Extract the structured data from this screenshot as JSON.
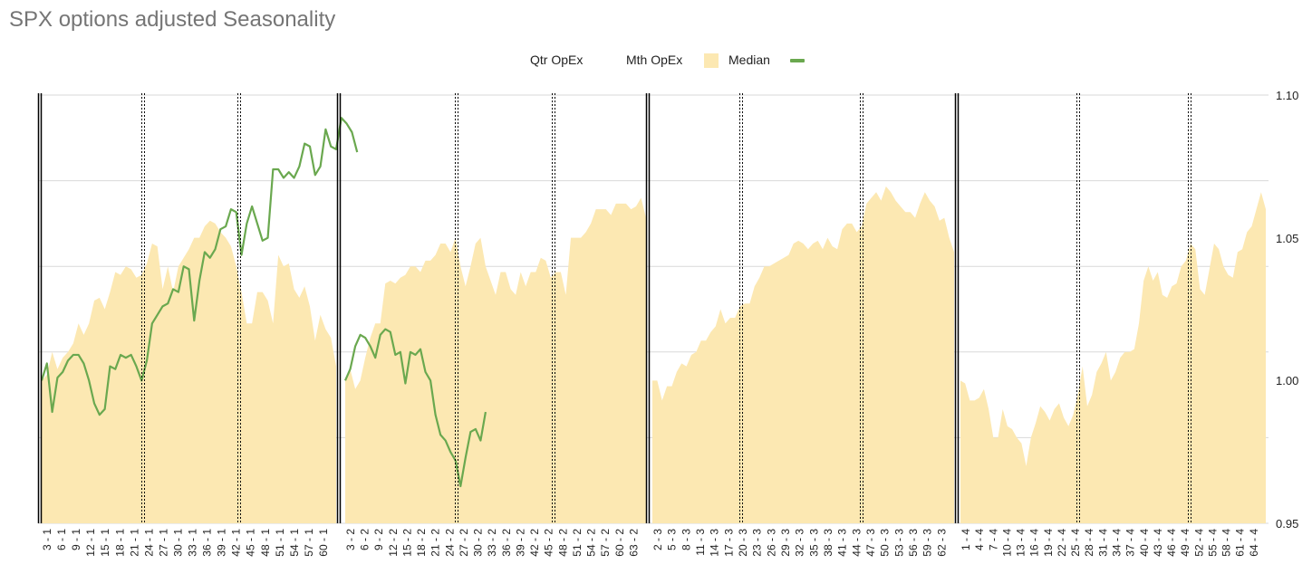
{
  "title": "SPX options adjusted Seasonality",
  "legend": {
    "qtr_opex": "Qtr OpEx",
    "mth_opex": "Mth OpEx",
    "median": "Median",
    "green_series": ""
  },
  "colors": {
    "median_fill": "#fce8b2",
    "green_line": "#6aa84f",
    "qtr_opex_line": "#000000",
    "mth_opex_line": "#000000",
    "gridline": "#d9d9d9"
  },
  "chart_data": {
    "type": "area",
    "title": "SPX options adjusted Seasonality",
    "ylim": [
      0.95,
      1.1
    ],
    "y_ticks": [
      "0.95",
      "1.00",
      "1.05",
      "1.10"
    ],
    "y_axis_side": "right",
    "grid": true,
    "legend_position": "top",
    "quarters": [
      {
        "quarter": 1,
        "x_labels": [
          "3 - 1",
          "6 - 1",
          "9 - 1",
          "12 - 1",
          "15 - 1",
          "18 - 1",
          "21 - 1",
          "24 - 1",
          "27 - 1",
          "30 - 1",
          "33 - 1",
          "36 - 1",
          "39 - 1",
          "42 - 1",
          "45 - 1",
          "48 - 1",
          "51 - 1",
          "54 - 1",
          "57 - 1",
          "60 - 1"
        ],
        "median": [
          1.0,
          1.002,
          1.01,
          1.004,
          1.008,
          1.01,
          1.013,
          1.02,
          1.016,
          1.02,
          1.028,
          1.029,
          1.025,
          1.031,
          1.038,
          1.037,
          1.04,
          1.039,
          1.036,
          1.037,
          1.041,
          1.048,
          1.047,
          1.032,
          1.04,
          1.031,
          1.04,
          1.043,
          1.046,
          1.05,
          1.05,
          1.054,
          1.056,
          1.055,
          1.052,
          1.05,
          1.047,
          1.04,
          1.031,
          1.02,
          1.02,
          1.031,
          1.031,
          1.028,
          1.02,
          1.044,
          1.04,
          1.041,
          1.032,
          1.029,
          1.033,
          1.026,
          1.014,
          1.023,
          1.018,
          1.015,
          1.005
        ],
        "green": [
          1.0,
          1.006,
          0.989,
          1.001,
          1.003,
          1.007,
          1.009,
          1.009,
          1.006,
          1.0,
          0.992,
          0.988,
          0.99,
          1.005,
          1.004,
          1.009,
          1.008,
          1.009,
          1.005,
          1.0,
          1.007,
          1.02,
          1.023,
          1.026,
          1.027,
          1.032,
          1.031,
          1.04,
          1.039,
          1.021,
          1.035,
          1.045,
          1.043,
          1.046,
          1.053,
          1.054,
          1.06,
          1.059,
          1.044,
          1.055,
          1.061,
          1.055,
          1.049,
          1.05,
          1.074,
          1.074,
          1.071,
          1.073,
          1.071,
          1.075,
          1.083,
          1.082,
          1.072,
          1.075,
          1.088,
          1.082,
          1.081,
          1.092,
          1.09,
          1.087,
          1.08
        ]
      },
      {
        "quarter": 2,
        "x_labels": [
          "3 - 2",
          "6 - 2",
          "9 - 2",
          "12 - 2",
          "15 - 2",
          "18 - 2",
          "21 - 2",
          "24 - 2",
          "27 - 2",
          "30 - 2",
          "33 - 2",
          "36 - 2",
          "39 - 2",
          "42 - 2",
          "45 - 2",
          "48 - 2",
          "51 - 2",
          "54 - 2",
          "57 - 2",
          "60 - 2",
          "63 - 2"
        ],
        "median": [
          1.0,
          1.004,
          0.997,
          1.0,
          1.008,
          1.015,
          1.02,
          1.02,
          1.034,
          1.035,
          1.034,
          1.036,
          1.037,
          1.04,
          1.04,
          1.038,
          1.042,
          1.042,
          1.044,
          1.048,
          1.048,
          1.045,
          1.05,
          1.04,
          1.033,
          1.04,
          1.048,
          1.05,
          1.04,
          1.035,
          1.03,
          1.038,
          1.038,
          1.032,
          1.03,
          1.038,
          1.033,
          1.038,
          1.038,
          1.043,
          1.042,
          1.036,
          1.038,
          1.038,
          1.03,
          1.05,
          1.05,
          1.05,
          1.052,
          1.055,
          1.06,
          1.06,
          1.06,
          1.058,
          1.062,
          1.062,
          1.062,
          1.06,
          1.061,
          1.064,
          1.057
        ],
        "green": [
          1.0,
          1.004,
          1.012,
          1.016,
          1.015,
          1.012,
          1.008,
          1.016,
          1.018,
          1.017,
          1.009,
          1.01,
          0.999,
          1.01,
          1.009,
          1.011,
          1.003,
          1.0,
          0.988,
          0.981,
          0.979,
          0.975,
          0.972,
          0.963,
          0.973,
          0.982,
          0.983,
          0.979,
          0.989
        ]
      },
      {
        "quarter": 3,
        "x_labels": [
          "2 - 3",
          "5 - 3",
          "8 - 3",
          "11 - 3",
          "14 - 3",
          "17 - 3",
          "20 - 3",
          "23 - 3",
          "26 - 3",
          "29 - 3",
          "32 - 3",
          "35 - 3",
          "38 - 3",
          "41 - 3",
          "44 - 3",
          "47 - 3",
          "50 - 3",
          "53 - 3",
          "56 - 3",
          "59 - 3",
          "62 - 3"
        ],
        "median": [
          1.0,
          1.0,
          0.993,
          0.998,
          0.998,
          1.003,
          1.006,
          1.005,
          1.009,
          1.01,
          1.014,
          1.014,
          1.017,
          1.019,
          1.025,
          1.02,
          1.022,
          1.022,
          1.026,
          1.027,
          1.027,
          1.033,
          1.036,
          1.04,
          1.04,
          1.041,
          1.042,
          1.043,
          1.044,
          1.048,
          1.049,
          1.048,
          1.046,
          1.048,
          1.049,
          1.046,
          1.05,
          1.047,
          1.046,
          1.053,
          1.055,
          1.055,
          1.052,
          1.054,
          1.062,
          1.064,
          1.066,
          1.063,
          1.068,
          1.066,
          1.063,
          1.061,
          1.059,
          1.059,
          1.057,
          1.062,
          1.066,
          1.063,
          1.061,
          1.056,
          1.057,
          1.05,
          1.045
        ]
      },
      {
        "quarter": 4,
        "x_labels": [
          "1 - 4",
          "4 - 4",
          "7 - 4",
          "10 - 4",
          "13 - 4",
          "16 - 4",
          "19 - 4",
          "22 - 4",
          "25 - 4",
          "28 - 4",
          "31 - 4",
          "34 - 4",
          "37 - 4",
          "40 - 4",
          "43 - 4",
          "46 - 4",
          "49 - 4",
          "52 - 4",
          "55 - 4",
          "58 - 4",
          "61 - 4",
          "64 - 4"
        ],
        "median": [
          1.0,
          0.999,
          0.993,
          0.993,
          0.994,
          0.997,
          0.99,
          0.98,
          0.98,
          0.99,
          0.984,
          0.983,
          0.98,
          0.978,
          0.97,
          0.98,
          0.985,
          0.991,
          0.989,
          0.986,
          0.99,
          0.992,
          0.987,
          0.984,
          0.988,
          0.995,
          1.005,
          0.991,
          0.995,
          1.003,
          1.006,
          1.01,
          1.0,
          1.003,
          1.008,
          1.01,
          1.01,
          1.011,
          1.02,
          1.035,
          1.04,
          1.035,
          1.038,
          1.03,
          1.029,
          1.033,
          1.034,
          1.04,
          1.042,
          1.048,
          1.046,
          1.032,
          1.03,
          1.039,
          1.048,
          1.046,
          1.04,
          1.037,
          1.036,
          1.045,
          1.046,
          1.052,
          1.054,
          1.06,
          1.066,
          1.06
        ]
      }
    ],
    "opex_markers": [
      {
        "quarter": 1,
        "type": "qtr",
        "x_label": "3 - 1"
      },
      {
        "quarter": 1,
        "type": "mth",
        "x_label": "21 - 1"
      },
      {
        "quarter": 1,
        "type": "mth",
        "x_label": "42 - 1"
      },
      {
        "quarter": 2,
        "type": "qtr",
        "x_label": "3 - 2"
      },
      {
        "quarter": 2,
        "type": "mth",
        "x_label": "24 - 2"
      },
      {
        "quarter": 2,
        "type": "mth",
        "x_label": "45 - 2"
      },
      {
        "quarter": 3,
        "type": "qtr",
        "x_label": "2 - 3"
      },
      {
        "quarter": 3,
        "type": "mth",
        "x_label": "20 - 3"
      },
      {
        "quarter": 3,
        "type": "mth",
        "x_label": "44 - 3"
      },
      {
        "quarter": 4,
        "type": "qtr",
        "x_label": "1 - 4"
      },
      {
        "quarter": 4,
        "type": "mth",
        "x_label": "25 - 4"
      },
      {
        "quarter": 4,
        "type": "mth",
        "x_label": "49 - 4"
      }
    ]
  }
}
